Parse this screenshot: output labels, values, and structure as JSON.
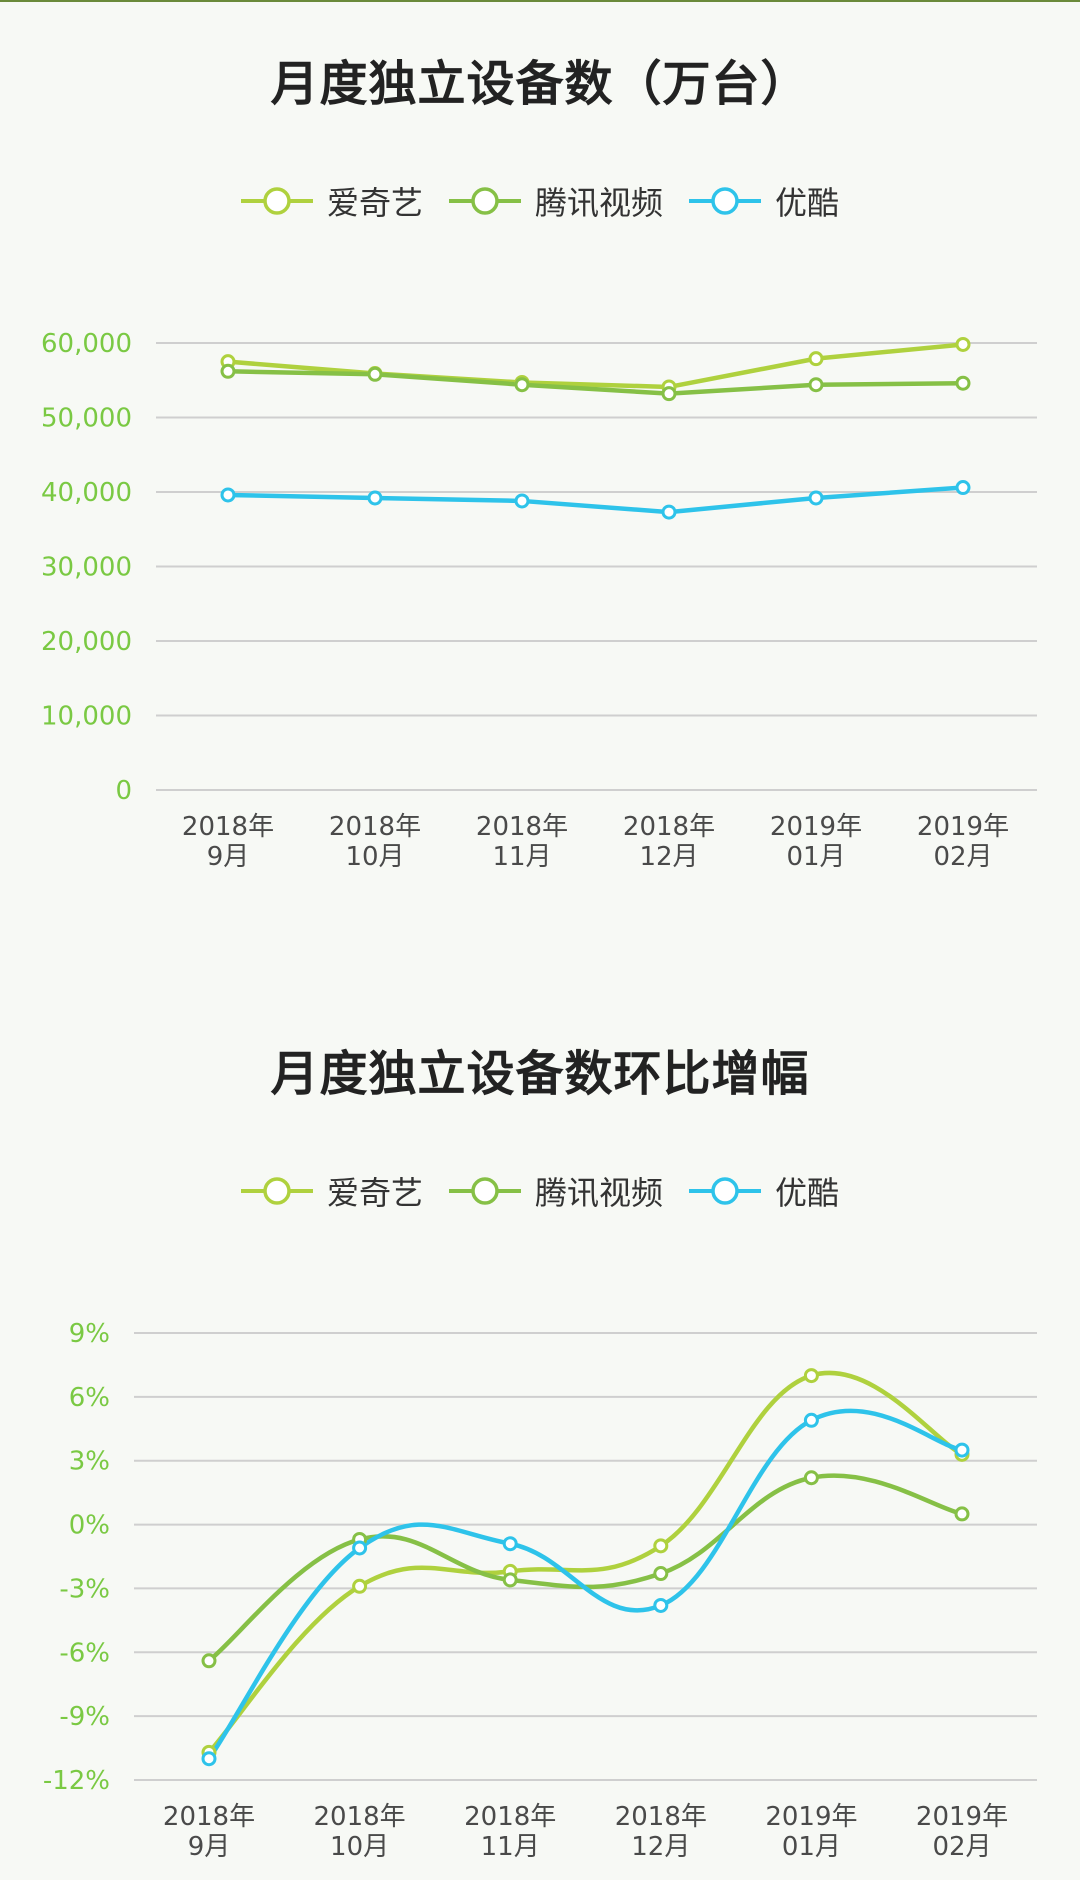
{
  "colors": {
    "iqiyi": "#afd13e",
    "tencent": "#86c046",
    "youku": "#2ec3ea",
    "axis_text": "#7ac943",
    "grid": "#cfcfcf",
    "xlabel": "#4a4a4a"
  },
  "legend": [
    {
      "label": "爱奇艺",
      "color": "#afd13e",
      "icon": "circle-line-icon"
    },
    {
      "label": "腾讯视频",
      "color": "#86c046",
      "icon": "circle-line-icon"
    },
    {
      "label": "优酷",
      "color": "#2ec3ea",
      "icon": "circle-line-icon"
    }
  ],
  "chart_data": [
    {
      "type": "line",
      "title": "月度独立设备数（万台）",
      "xlabel": "",
      "ylabel": "",
      "categories": [
        "2018年\n9月",
        "2018年\n10月",
        "2018年\n11月",
        "2018年\n12月",
        "2019年\n01月",
        "2019年\n02月"
      ],
      "ylim": [
        0,
        60000
      ],
      "yticks": [
        0,
        10000,
        20000,
        30000,
        40000,
        50000,
        60000
      ],
      "ytick_labels": [
        "0",
        "10,000",
        "20,000",
        "30,000",
        "40,000",
        "50,000",
        "60,000"
      ],
      "grid": true,
      "legend_position": "top",
      "smooth": false,
      "series": [
        {
          "name": "爱奇艺",
          "color": "#afd13e",
          "values": [
            57500,
            55900,
            54700,
            54100,
            57900,
            59800
          ]
        },
        {
          "name": "腾讯视频",
          "color": "#86c046",
          "values": [
            56200,
            55800,
            54400,
            53200,
            54400,
            54600
          ]
        },
        {
          "name": "优酷",
          "color": "#2ec3ea",
          "values": [
            39600,
            39200,
            38800,
            37300,
            39200,
            40600
          ]
        }
      ]
    },
    {
      "type": "line",
      "title": "月度独立设备数环比增幅",
      "xlabel": "",
      "ylabel": "",
      "categories": [
        "2018年\n9月",
        "2018年\n10月",
        "2018年\n11月",
        "2018年\n12月",
        "2019年\n01月",
        "2019年\n02月"
      ],
      "ylim": [
        -12,
        9
      ],
      "yticks": [
        -12,
        -9,
        -6,
        -3,
        0,
        3,
        6,
        9
      ],
      "ytick_labels": [
        "-12%",
        "-9%",
        "-6%",
        "-3%",
        "0%",
        "3%",
        "6%",
        "9%"
      ],
      "grid": true,
      "legend_position": "top",
      "smooth": true,
      "series": [
        {
          "name": "爱奇艺",
          "color": "#afd13e",
          "values": [
            -10.7,
            -2.9,
            -2.2,
            -1.0,
            7.0,
            3.3
          ]
        },
        {
          "name": "腾讯视频",
          "color": "#86c046",
          "values": [
            -6.4,
            -0.7,
            -2.6,
            -2.3,
            2.2,
            0.5
          ]
        },
        {
          "name": "优酷",
          "color": "#2ec3ea",
          "values": [
            -11.0,
            -1.1,
            -0.9,
            -3.8,
            4.9,
            3.5
          ]
        }
      ]
    }
  ]
}
